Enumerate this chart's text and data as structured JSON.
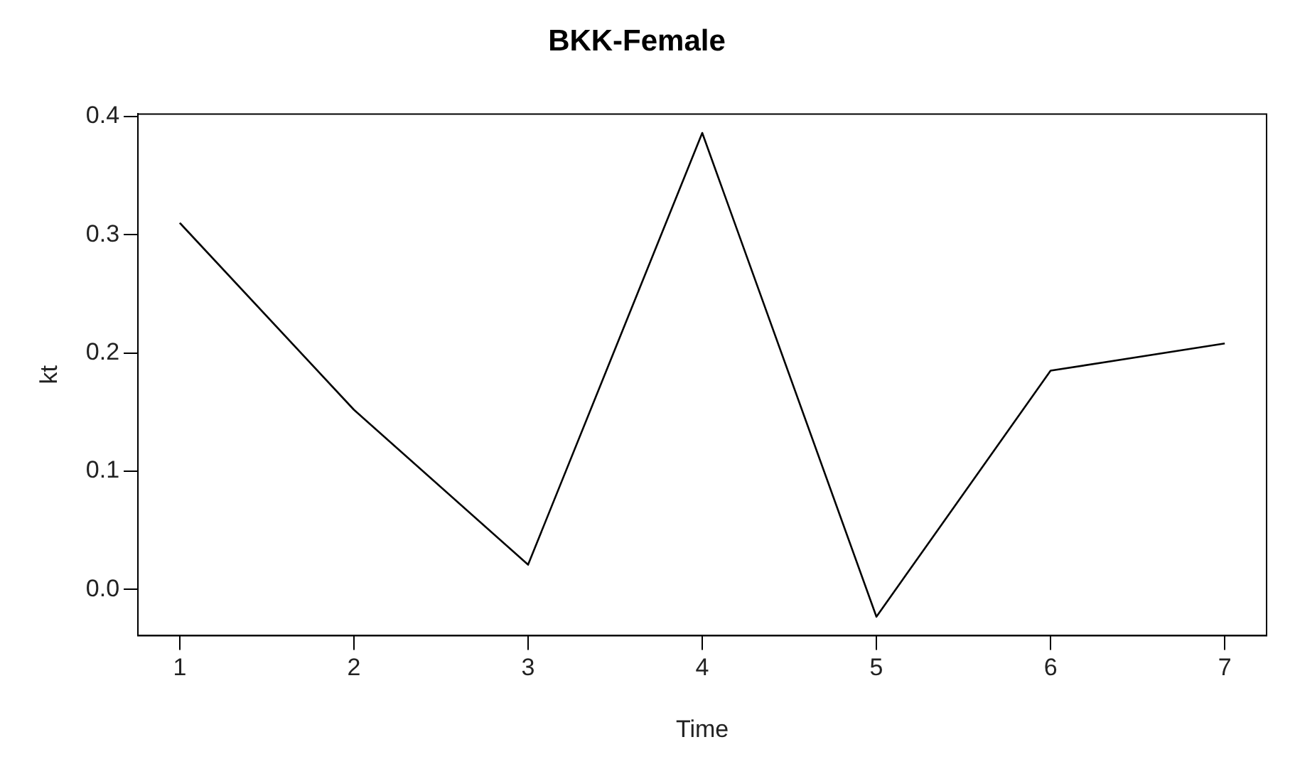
{
  "chart_data": {
    "type": "line",
    "title": "BKK-Female",
    "xlabel": "Time",
    "ylabel": "kt",
    "x": [
      1,
      2,
      3,
      4,
      5,
      6,
      7
    ],
    "series": [
      {
        "color": "#000000",
        "values": [
          0.31,
          0.152,
          0.021,
          0.386,
          -0.023,
          0.185,
          0.208
        ]
      }
    ],
    "xlim": [
      0.76,
      7.24
    ],
    "xticks": [
      1,
      2,
      3,
      4,
      5,
      6,
      7
    ],
    "ylim": [
      -0.039,
      0.402
    ],
    "yticks": [
      {
        "value": 0,
        "label": "0.0"
      },
      {
        "value": 0.1,
        "label": "0.1"
      },
      {
        "value": 0.2,
        "label": "0.2"
      },
      {
        "value": 0.3,
        "label": "0.3"
      },
      {
        "value": 0.4,
        "label": "0.4"
      }
    ],
    "grid": false,
    "legend": false,
    "marker": "none",
    "line_style": "solid"
  }
}
